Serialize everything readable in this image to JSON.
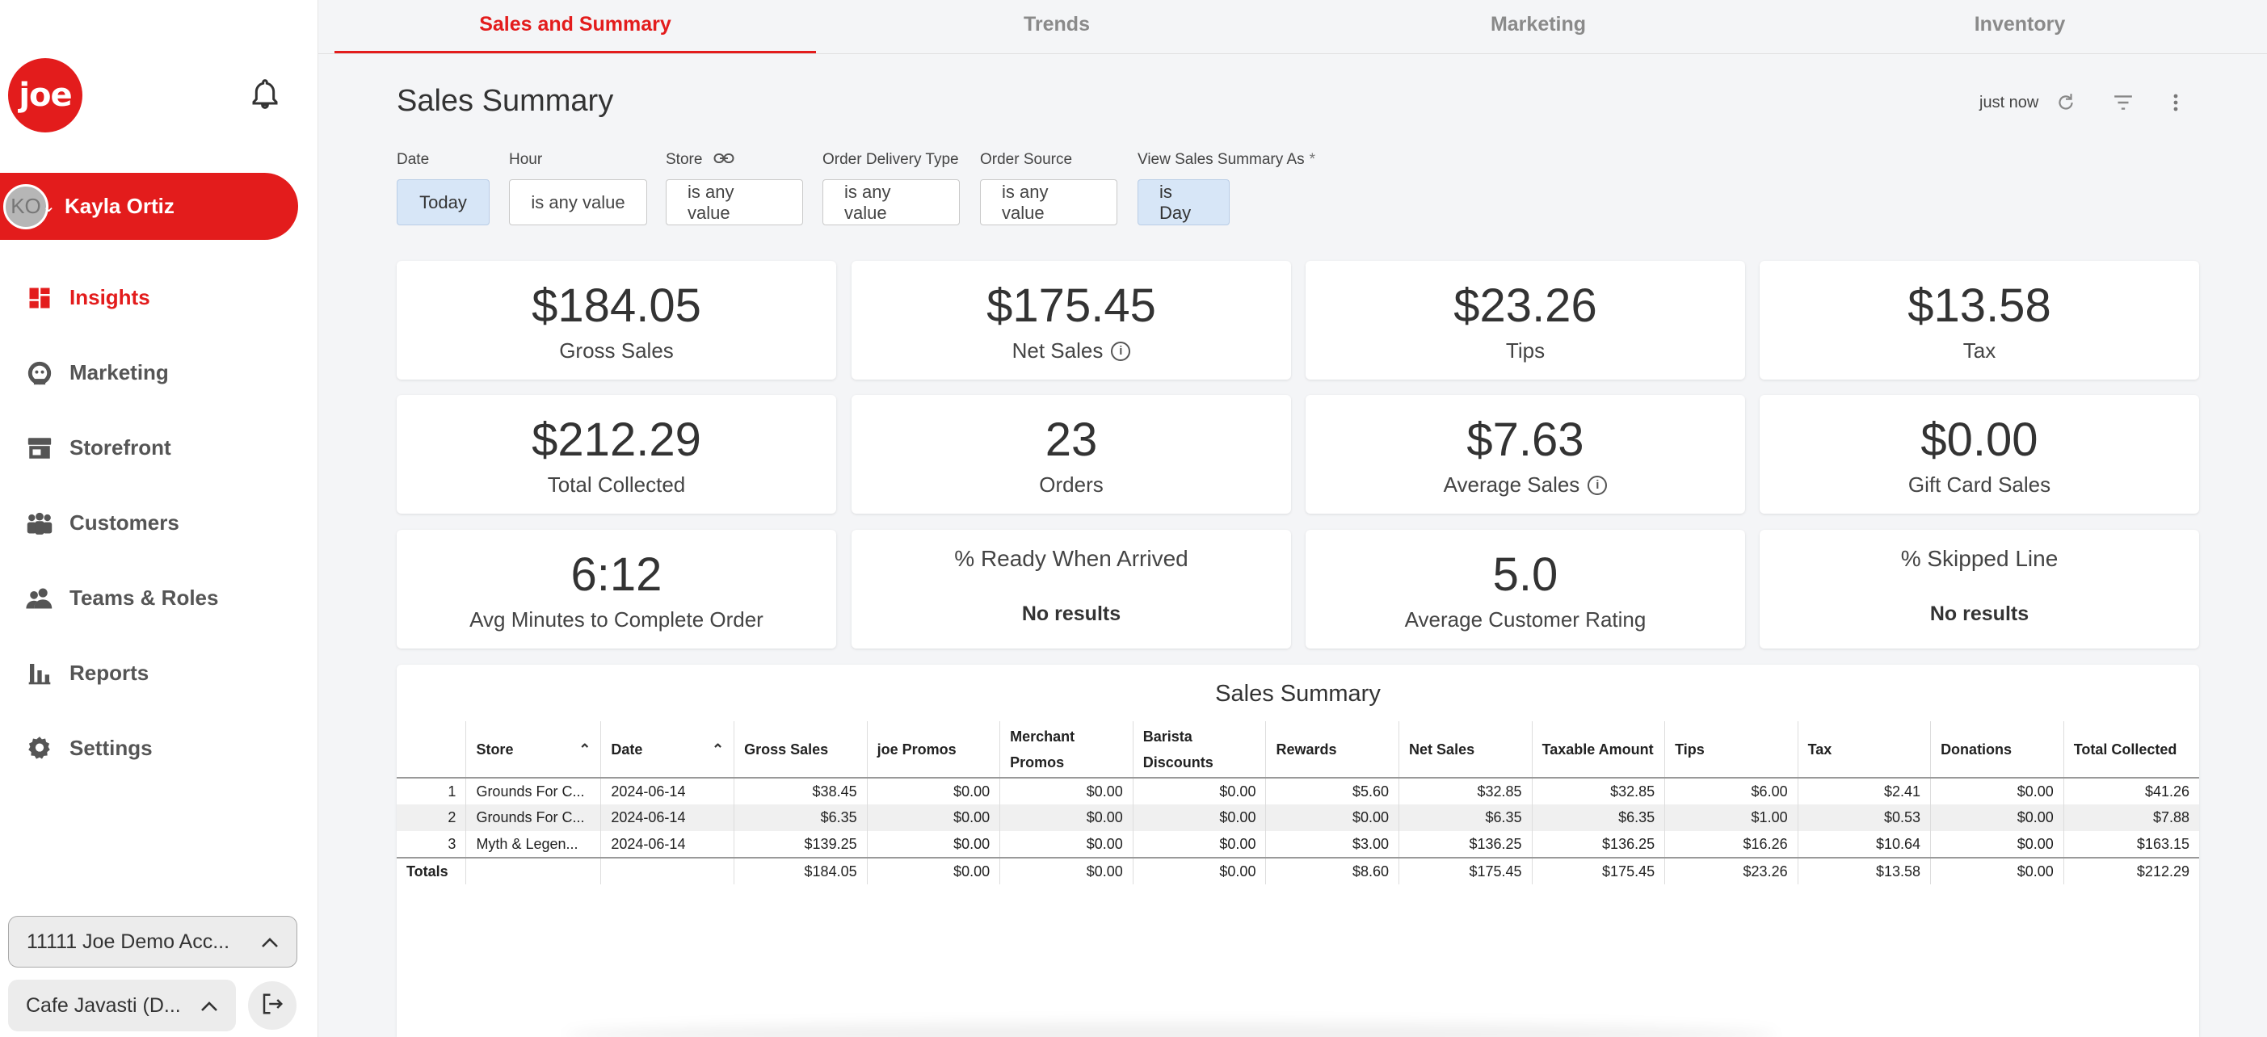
{
  "brand": {
    "logo_text": "joe",
    "accent": "#e31c1c"
  },
  "user": {
    "initials": "KO",
    "name": "Kayla Ortiz"
  },
  "nav": [
    {
      "label": "Insights",
      "icon": "dashboard-icon",
      "active": true
    },
    {
      "label": "Marketing",
      "icon": "marketing-icon"
    },
    {
      "label": "Storefront",
      "icon": "storefront-icon"
    },
    {
      "label": "Customers",
      "icon": "customers-icon"
    },
    {
      "label": "Teams & Roles",
      "icon": "teams-icon"
    },
    {
      "label": "Reports",
      "icon": "bar-chart-icon"
    },
    {
      "label": "Settings",
      "icon": "gear-icon"
    }
  ],
  "account": {
    "label": "11111 Joe Demo Acc...",
    "store": "Cafe Javasti (D..."
  },
  "tabs": [
    "Sales and Summary",
    "Trends",
    "Marketing",
    "Inventory"
  ],
  "header": {
    "title": "Sales Summary",
    "updated": "just now"
  },
  "filters": [
    {
      "label": "Date",
      "value": "Today",
      "selected": true
    },
    {
      "label": "Hour",
      "value": "is any value"
    },
    {
      "label": "Store",
      "value": "is any value",
      "link_icon": true
    },
    {
      "label": "Order Delivery Type",
      "value": "is any value"
    },
    {
      "label": "Order Source",
      "value": "is any value"
    },
    {
      "label": "View Sales Summary As",
      "required": "*",
      "value": "is Day",
      "selected": true
    }
  ],
  "cards": [
    {
      "value": "$184.05",
      "label": "Gross Sales"
    },
    {
      "value": "$175.45",
      "label": "Net Sales",
      "info": true
    },
    {
      "value": "$23.26",
      "label": "Tips"
    },
    {
      "value": "$13.58",
      "label": "Tax"
    },
    {
      "value": "$212.29",
      "label": "Total Collected"
    },
    {
      "value": "23",
      "label": "Orders"
    },
    {
      "value": "$7.63",
      "label": "Average Sales",
      "info": true
    },
    {
      "value": "$0.00",
      "label": "Gift Card Sales"
    },
    {
      "value": "6:12",
      "label": "Avg Minutes to Complete Order"
    },
    {
      "label": "% Ready When Arrived",
      "no_results": "No results"
    },
    {
      "value": "5.0",
      "label": "Average Customer Rating"
    },
    {
      "label": "% Skipped Line",
      "no_results": "No results"
    }
  ],
  "table": {
    "title": "Sales Summary",
    "columns": [
      "",
      "Store",
      "Date",
      "Gross Sales",
      "joe Promos",
      "Merchant Promos",
      "Barista Discounts",
      "Rewards",
      "Net Sales",
      "Taxable Amount",
      "Tips",
      "Tax",
      "Donations",
      "Total Collected"
    ],
    "rows": [
      [
        "1",
        "Grounds For C...",
        "2024-06-14",
        "$38.45",
        "$0.00",
        "$0.00",
        "$0.00",
        "$5.60",
        "$32.85",
        "$32.85",
        "$6.00",
        "$2.41",
        "$0.00",
        "$41.26"
      ],
      [
        "2",
        "Grounds For C...",
        "2024-06-14",
        "$6.35",
        "$0.00",
        "$0.00",
        "$0.00",
        "$0.00",
        "$6.35",
        "$6.35",
        "$1.00",
        "$0.53",
        "$0.00",
        "$7.88"
      ],
      [
        "3",
        "Myth & Legen...",
        "2024-06-14",
        "$139.25",
        "$0.00",
        "$0.00",
        "$0.00",
        "$3.00",
        "$136.25",
        "$136.25",
        "$16.26",
        "$10.64",
        "$0.00",
        "$163.15"
      ]
    ],
    "totals": [
      "Totals",
      "",
      "",
      "$184.05",
      "$0.00",
      "$0.00",
      "$0.00",
      "$8.60",
      "$175.45",
      "$175.45",
      "$23.26",
      "$13.58",
      "$0.00",
      "$212.29"
    ]
  }
}
